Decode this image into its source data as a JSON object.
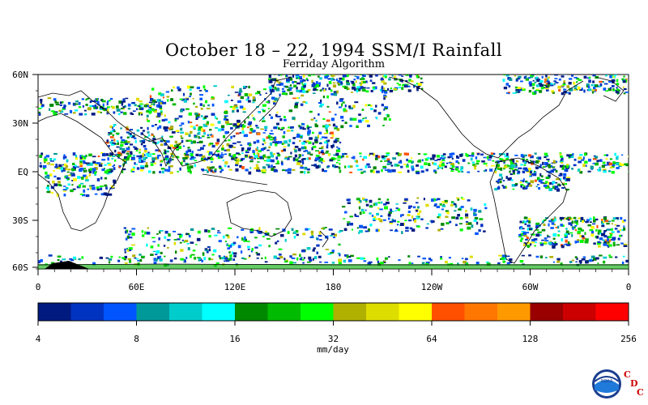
{
  "title": "October 18 – 22, 1994 SSM/I Rainfall",
  "subtitle": "Ferriday Algorithm",
  "lat_labels": [
    "60N",
    "30N",
    "EQ",
    "30S",
    "60S"
  ],
  "lon_labels": [
    "0",
    "60E",
    "120E",
    "180",
    "120W",
    "60W",
    "0"
  ],
  "colorbar": {
    "colors": [
      "#001a80",
      "#0033c0",
      "#0055ff",
      "#00999a",
      "#00cccc",
      "#00ffff",
      "#008800",
      "#00bb00",
      "#00ff00",
      "#b0b000",
      "#dddd00",
      "#ffff00",
      "#ff5000",
      "#ff7700",
      "#ff9900",
      "#990000",
      "#cc0000",
      "#ff0000"
    ],
    "tick_labels": [
      "4",
      "8",
      "16",
      "32",
      "64",
      "128",
      "256"
    ],
    "unit": "mm/day"
  },
  "logo": {
    "text": "NOAA",
    "cdc_letters": [
      "C",
      "D",
      "C"
    ],
    "icon": "noaa-logo-icon"
  }
}
